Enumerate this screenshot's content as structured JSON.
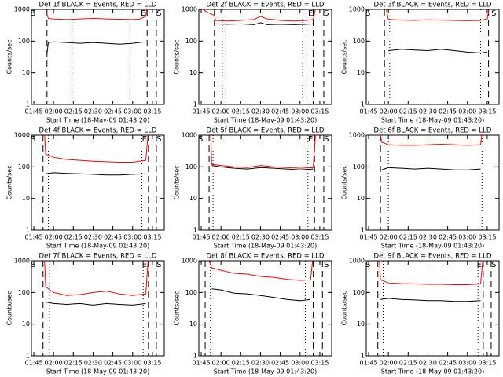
{
  "chart_data": [
    {
      "type": "line",
      "title": "Det 1f BLACK = Events, RED = LLD",
      "x_label": "Start Time (18-May-09 01:43:20)",
      "y_label": "Counts/sec",
      "yscale": "log",
      "xlim": [
        103.2,
        204
      ],
      "ylim": [
        1,
        1000
      ],
      "yticks": [
        1,
        10,
        100,
        1000
      ],
      "xticks": [
        {
          "value": 105,
          "label": "01:45"
        },
        {
          "value": 120,
          "label": "02:00"
        },
        {
          "value": 135,
          "label": "02:15"
        },
        {
          "value": 150,
          "label": "02:30"
        },
        {
          "value": 165,
          "label": "02:45"
        },
        {
          "value": 180,
          "label": "03:00"
        },
        {
          "value": 195,
          "label": "03:15"
        }
      ],
      "x": [
        115,
        116,
        120,
        130,
        140,
        150,
        155,
        160,
        170,
        180,
        185,
        190,
        191
      ],
      "series": [
        {
          "name": "LLD",
          "color": "#ff0000",
          "values": [
            700,
            520,
            500,
            480,
            500,
            520,
            510,
            500,
            490,
            480,
            490,
            600,
            1500
          ]
        },
        {
          "name": "Events",
          "color": "#000000",
          "values": [
            40,
            90,
            95,
            90,
            85,
            90,
            88,
            85,
            80,
            85,
            90,
            95,
            null
          ]
        }
      ],
      "dashed_lines": [
        115,
        191,
        198
      ],
      "dotted_lines": [
        134,
        178
      ],
      "annotations": [
        {
          "text": "S",
          "x": 104.5
        },
        {
          "text": "E",
          "x": 188
        },
        {
          "text": "S",
          "x": 200
        }
      ]
    },
    {
      "type": "line",
      "title": "Det 2f BLACK = Events, RED = LLD",
      "x_label": "Start Time (18-May-09 01:43:20)",
      "y_label": "Counts/sec",
      "yscale": "log",
      "xlim": [
        103.2,
        204
      ],
      "ylim": [
        1,
        1000
      ],
      "yticks": [
        1,
        10,
        100,
        1000
      ],
      "xticks": [
        {
          "value": 105,
          "label": "01:45"
        },
        {
          "value": 120,
          "label": "02:00"
        },
        {
          "value": 135,
          "label": "02:15"
        },
        {
          "value": 150,
          "label": "02:30"
        },
        {
          "value": 165,
          "label": "02:45"
        },
        {
          "value": 180,
          "label": "03:00"
        },
        {
          "value": 195,
          "label": "03:15"
        }
      ],
      "x": [
        103.2,
        106,
        110,
        115,
        116,
        125,
        135,
        145,
        150,
        155,
        165,
        175,
        185,
        190,
        192
      ],
      "series": [
        {
          "name": "LLD",
          "color": "#ff0000",
          "values": [
            1300,
            1000,
            800,
            650,
            450,
            430,
            450,
            480,
            600,
            500,
            450,
            430,
            450,
            480,
            1200
          ]
        },
        {
          "name": "Events",
          "color": "#000000",
          "values": [
            null,
            null,
            null,
            null,
            350,
            340,
            350,
            330,
            380,
            330,
            340,
            330,
            340,
            350,
            null
          ]
        }
      ],
      "dashed_lines": [
        115,
        190,
        198
      ],
      "dotted_lines": [
        121,
        182
      ],
      "annotations": [
        {
          "text": "E",
          "x": 188
        },
        {
          "text": "S",
          "x": 200
        }
      ]
    },
    {
      "type": "line",
      "title": "Det 3f BLACK = Events, RED = LLD",
      "x_label": "Start Time (18-May-09 01:43:20)",
      "y_label": "Counts/sec",
      "yscale": "log",
      "xlim": [
        103.2,
        204
      ],
      "ylim": [
        1,
        1000
      ],
      "yticks": [
        1,
        10,
        100,
        1000
      ],
      "xticks": [
        {
          "value": 105,
          "label": "01:45"
        },
        {
          "value": 120,
          "label": "02:00"
        },
        {
          "value": 135,
          "label": "02:15"
        },
        {
          "value": 150,
          "label": "02:30"
        },
        {
          "value": 165,
          "label": "02:45"
        },
        {
          "value": 180,
          "label": "03:00"
        },
        {
          "value": 195,
          "label": "03:15"
        }
      ],
      "x": [
        118,
        120,
        130,
        140,
        150,
        160,
        170,
        180,
        190,
        195,
        197
      ],
      "series": [
        {
          "name": "LLD",
          "color": "#ff0000",
          "values": [
            1200,
            480,
            460,
            450,
            470,
            460,
            450,
            440,
            450,
            500,
            1500
          ]
        },
        {
          "name": "Events",
          "color": "#000000",
          "values": [
            null,
            50,
            55,
            52,
            50,
            55,
            50,
            45,
            42,
            45,
            null
          ]
        }
      ],
      "dashed_lines": [
        117,
        196
      ],
      "dotted_lines": [
        121,
        190
      ],
      "annotations": [
        {
          "text": "S",
          "x": 104.5
        },
        {
          "text": "S",
          "x": 200
        }
      ]
    },
    {
      "type": "line",
      "title": "Det 4f BLACK = Events, RED = LLD",
      "x_label": "Start Time (18-May-09 01:43:20)",
      "y_label": "Counts/sec",
      "yscale": "log",
      "xlim": [
        103.2,
        204
      ],
      "ylim": [
        1,
        1000
      ],
      "yticks": [
        1,
        10,
        100,
        1000
      ],
      "xticks": [
        {
          "value": 105,
          "label": "01:45"
        },
        {
          "value": 120,
          "label": "02:00"
        },
        {
          "value": 135,
          "label": "02:15"
        },
        {
          "value": 150,
          "label": "02:30"
        },
        {
          "value": 165,
          "label": "02:45"
        },
        {
          "value": 180,
          "label": "03:00"
        },
        {
          "value": 195,
          "label": "03:15"
        }
      ],
      "x": [
        113,
        114,
        120,
        130,
        140,
        150,
        160,
        170,
        180,
        190,
        192
      ],
      "series": [
        {
          "name": "LLD",
          "color": "#ff0000",
          "values": [
            1500,
            250,
            200,
            170,
            160,
            150,
            145,
            140,
            140,
            160,
            1500
          ]
        },
        {
          "name": "Events",
          "color": "#000000",
          "values": [
            null,
            60,
            65,
            62,
            60,
            58,
            55,
            55,
            58,
            60,
            null
          ]
        }
      ],
      "dashed_lines": [
        112,
        192,
        198
      ],
      "dotted_lines": [
        116,
        187
      ],
      "annotations": [
        {
          "text": "S",
          "x": 104.5
        },
        {
          "text": "E",
          "x": 189
        },
        {
          "text": "S",
          "x": 200
        }
      ]
    },
    {
      "type": "line",
      "title": "Det 5f BLACK = Events, RED = LLD",
      "x_label": "Start Time (18-May-09 01:43:20)",
      "y_label": "Counts/sec",
      "yscale": "log",
      "xlim": [
        103.2,
        204
      ],
      "ylim": [
        1,
        1000
      ],
      "yticks": [
        1,
        10,
        100,
        1000
      ],
      "xticks": [
        {
          "value": 105,
          "label": "01:45"
        },
        {
          "value": 120,
          "label": "02:00"
        },
        {
          "value": 135,
          "label": "02:15"
        },
        {
          "value": 150,
          "label": "02:30"
        },
        {
          "value": 165,
          "label": "02:45"
        },
        {
          "value": 180,
          "label": "03:00"
        },
        {
          "value": 195,
          "label": "03:15"
        }
      ],
      "x": [
        112,
        113,
        120,
        130,
        140,
        150,
        160,
        170,
        180,
        190,
        192
      ],
      "series": [
        {
          "name": "LLD",
          "color": "#ff0000",
          "values": [
            1500,
            120,
            110,
            100,
            95,
            110,
            100,
            95,
            90,
            95,
            1500
          ]
        },
        {
          "name": "Events",
          "color": "#000000",
          "values": [
            null,
            110,
            100,
            90,
            85,
            95,
            90,
            85,
            80,
            85,
            null
          ]
        }
      ],
      "dashed_lines": [
        111,
        191,
        198
      ],
      "dotted_lines": [
        114,
        186
      ],
      "annotations": [
        {
          "text": "S",
          "x": 104.5
        },
        {
          "text": "E",
          "x": 188
        },
        {
          "text": "S",
          "x": 200
        }
      ]
    },
    {
      "type": "line",
      "title": "Det 6f BLACK = Events, RED = LLD",
      "x_label": "Start Time (18-May-09 01:43:20)",
      "y_label": "Counts/sec",
      "yscale": "log",
      "xlim": [
        103.2,
        204
      ],
      "ylim": [
        1,
        1000
      ],
      "yticks": [
        1,
        10,
        100,
        1000
      ],
      "xticks": [
        {
          "value": 105,
          "label": "01:45"
        },
        {
          "value": 120,
          "label": "02:00"
        },
        {
          "value": 135,
          "label": "02:15"
        },
        {
          "value": 150,
          "label": "02:30"
        },
        {
          "value": 165,
          "label": "02:45"
        },
        {
          "value": 180,
          "label": "03:00"
        },
        {
          "value": 195,
          "label": "03:15"
        }
      ],
      "x": [
        113,
        115,
        120,
        130,
        140,
        150,
        160,
        170,
        180,
        190,
        191
      ],
      "series": [
        {
          "name": "LLD",
          "color": "#ff0000",
          "values": [
            1500,
            600,
            500,
            480,
            480,
            500,
            520,
            500,
            480,
            500,
            1200
          ]
        },
        {
          "name": "Events",
          "color": "#000000",
          "values": [
            null,
            80,
            95,
            90,
            85,
            90,
            85,
            80,
            80,
            85,
            null
          ]
        }
      ],
      "dashed_lines": [
        114
      ],
      "dotted_lines": [
        120,
        191
      ],
      "annotations": []
    },
    {
      "type": "line",
      "title": "Det 7f BLACK = Events, RED = LLD",
      "x_label": "Start Time (18-May-09 01:43:20)",
      "y_label": "Counts/sec",
      "yscale": "log",
      "xlim": [
        103.2,
        204
      ],
      "ylim": [
        1,
        1000
      ],
      "yticks": [
        1,
        10,
        100,
        1000
      ],
      "xticks": [
        {
          "value": 105,
          "label": "01:45"
        },
        {
          "value": 120,
          "label": "02:00"
        },
        {
          "value": 135,
          "label": "02:15"
        },
        {
          "value": 150,
          "label": "02:30"
        },
        {
          "value": 165,
          "label": "02:45"
        },
        {
          "value": 180,
          "label": "03:00"
        },
        {
          "value": 195,
          "label": "03:15"
        }
      ],
      "x": [
        113,
        114,
        120,
        130,
        140,
        150,
        160,
        170,
        180,
        190,
        192
      ],
      "series": [
        {
          "name": "LLD",
          "color": "#ff0000",
          "values": [
            1500,
            150,
            100,
            80,
            85,
            100,
            110,
            90,
            80,
            90,
            1500
          ]
        },
        {
          "name": "Events",
          "color": "#000000",
          "values": [
            null,
            50,
            45,
            42,
            45,
            40,
            45,
            42,
            40,
            45,
            null
          ]
        }
      ],
      "dashed_lines": [
        112,
        192,
        198
      ],
      "dotted_lines": [
        117,
        188
      ],
      "annotations": [
        {
          "text": "S",
          "x": 104.5
        },
        {
          "text": "E",
          "x": 189
        },
        {
          "text": "S",
          "x": 200
        }
      ]
    },
    {
      "type": "line",
      "title": "Det 8f BLACK = Events, RED = LLD",
      "x_label": "Start Time (18-May-09 01:43:20)",
      "y_label": "Counts/sec",
      "yscale": "log",
      "xlim": [
        103.2,
        204
      ],
      "ylim": [
        1,
        1000
      ],
      "yticks": [
        1,
        10,
        100,
        1000
      ],
      "xticks": [
        {
          "value": 105,
          "label": "01:45"
        },
        {
          "value": 120,
          "label": "02:00"
        },
        {
          "value": 135,
          "label": "02:15"
        },
        {
          "value": 150,
          "label": "02:30"
        },
        {
          "value": 165,
          "label": "02:45"
        },
        {
          "value": 180,
          "label": "03:00"
        },
        {
          "value": 195,
          "label": "03:15"
        }
      ],
      "x": [
        110,
        113,
        120,
        130,
        140,
        150,
        160,
        170,
        180,
        188,
        190
      ],
      "series": [
        {
          "name": "LLD",
          "color": "#ff0000",
          "values": [
            1300,
            600,
            500,
            400,
            380,
            320,
            300,
            260,
            240,
            250,
            1500
          ]
        },
        {
          "name": "Events",
          "color": "#000000",
          "values": [
            null,
            130,
            120,
            95,
            90,
            80,
            70,
            60,
            55,
            60,
            null
          ]
        }
      ],
      "dashed_lines": [
        108,
        190,
        197
      ],
      "dotted_lines": [
        112,
        184
      ],
      "annotations": [
        {
          "text": "S",
          "x": 200
        }
      ]
    },
    {
      "type": "line",
      "title": "Det 9f BLACK = Events, RED = LLD",
      "x_label": "Start Time (18-May-09 01:43:20)",
      "y_label": "Counts/sec",
      "yscale": "log",
      "xlim": [
        103.2,
        204
      ],
      "ylim": [
        1,
        1000
      ],
      "yticks": [
        1,
        10,
        100,
        1000
      ],
      "xticks": [
        {
          "value": 105,
          "label": "01:45"
        },
        {
          "value": 120,
          "label": "02:00"
        },
        {
          "value": 135,
          "label": "02:15"
        },
        {
          "value": 150,
          "label": "02:30"
        },
        {
          "value": 165,
          "label": "02:45"
        },
        {
          "value": 180,
          "label": "03:00"
        },
        {
          "value": 195,
          "label": "03:15"
        }
      ],
      "x": [
        113,
        114,
        120,
        130,
        140,
        150,
        160,
        170,
        180,
        190,
        192
      ],
      "series": [
        {
          "name": "LLD",
          "color": "#ff0000",
          "values": [
            1500,
            250,
            200,
            190,
            185,
            180,
            180,
            175,
            175,
            185,
            1500
          ]
        },
        {
          "name": "Events",
          "color": "#000000",
          "values": [
            null,
            60,
            65,
            60,
            58,
            55,
            55,
            52,
            52,
            55,
            null
          ]
        }
      ],
      "dashed_lines": [
        112,
        192,
        198
      ],
      "dotted_lines": [
        116,
        188
      ],
      "annotations": [
        {
          "text": "S",
          "x": 104.5
        },
        {
          "text": "E",
          "x": 189
        },
        {
          "text": "S",
          "x": 200
        }
      ]
    }
  ]
}
